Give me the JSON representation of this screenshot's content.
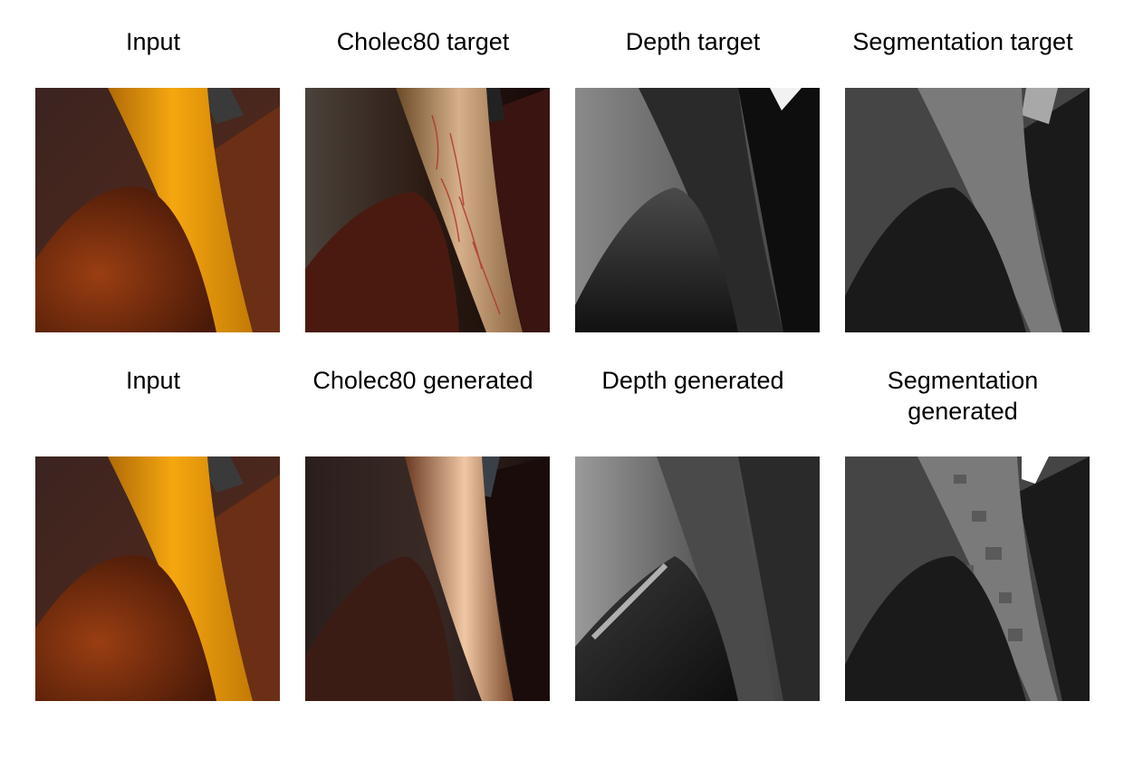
{
  "figure": {
    "rows": [
      {
        "panels": [
          {
            "label": "Input",
            "kind": "input"
          },
          {
            "label": "Cholec80 target",
            "kind": "cholec-target"
          },
          {
            "label": "Depth target",
            "kind": "depth-target"
          },
          {
            "label": "Segmentation target",
            "kind": "seg-target"
          }
        ]
      },
      {
        "panels": [
          {
            "label": "Input",
            "kind": "input"
          },
          {
            "label": "Cholec80 generated",
            "kind": "cholec-generated"
          },
          {
            "label": "Depth generated",
            "kind": "depth-generated"
          },
          {
            "label_line1": "Segmentation",
            "label_line2": "generated",
            "kind": "seg-generated"
          }
        ]
      }
    ]
  }
}
